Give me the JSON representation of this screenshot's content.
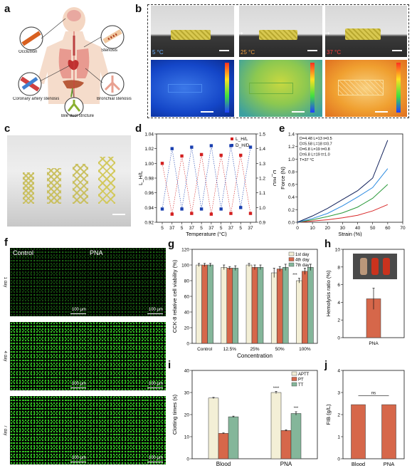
{
  "panels": {
    "a": {
      "letter": "a",
      "labels": [
        "Occlusion",
        "Stenosis",
        "Coronary artery stenosis",
        "Bronchial stenosis",
        "Bile duct stricture"
      ]
    },
    "b": {
      "letter": "b",
      "temps": [
        "5 °C",
        "25 °C",
        "37 °C"
      ],
      "colors": {
        "cold": "#1446c8",
        "mid": "#8cc850",
        "hot": "#f0a030"
      }
    },
    "c": {
      "letter": "c"
    },
    "d": {
      "letter": "d"
    },
    "e": {
      "letter": "e"
    },
    "f": {
      "letter": "f",
      "columns": [
        "Control",
        "PNA"
      ],
      "rows": [
        "1 day",
        "4 day",
        "7 day"
      ],
      "scale": "100 μm"
    },
    "g": {
      "letter": "g"
    },
    "h": {
      "letter": "h"
    },
    "i": {
      "letter": "i"
    },
    "j": {
      "letter": "j"
    }
  },
  "chart_data": [
    {
      "id": "d",
      "type": "scatter",
      "xlabel": "Temperature (°C)",
      "ylabel_left": "L_H/L",
      "ylabel_right": "D_H/D",
      "x_ticks": [
        "5",
        "37",
        "5",
        "37",
        "5",
        "37",
        "5",
        "37",
        "5",
        "37"
      ],
      "ylim_left": [
        0.92,
        1.04
      ],
      "yticks_left": [
        0.92,
        0.94,
        0.96,
        0.98,
        1.0,
        1.02,
        1.04
      ],
      "ylim_right": [
        0.9,
        1.5
      ],
      "yticks_right": [
        0.9,
        1.0,
        1.1,
        1.2,
        1.3,
        1.4,
        1.5
      ],
      "series": [
        {
          "name": "L_H/L",
          "color": "#d32020",
          "axis": "left",
          "values": [
            1.0,
            0.931,
            1.01,
            0.932,
            1.012,
            0.931,
            1.011,
            0.932,
            1.011,
            0.932
          ]
        },
        {
          "name": "D_H/D",
          "color": "#1a40b0",
          "axis": "right",
          "values": [
            0.99,
            1.4,
            0.99,
            1.41,
            0.99,
            1.42,
            0.99,
            1.42,
            1.0,
            1.41
          ]
        }
      ],
      "legend_position": "top-right"
    },
    {
      "id": "e",
      "type": "line",
      "xlabel": "Strain (%)",
      "ylabel": "Force (N)",
      "xlim": [
        0,
        70
      ],
      "xticks": [
        0,
        10,
        20,
        30,
        40,
        50,
        60,
        70
      ],
      "ylim": [
        0,
        1.4
      ],
      "yticks": [
        0.0,
        0.2,
        0.4,
        0.6,
        0.8,
        1.0,
        1.2,
        1.4
      ],
      "legend": [
        "D=4.48 L=13 t=0.5",
        "D=5.58 L=18 t=0.7",
        "D=6.8 L=19 t=0.8",
        "D=6.8 L=19 t=1.0",
        "T=37 °C"
      ],
      "series": [
        {
          "name": "D=4.48 L=13 t=0.5",
          "color": "#d82828",
          "x": [
            0,
            10,
            20,
            30,
            40,
            50,
            60
          ],
          "values": [
            0,
            0.02,
            0.04,
            0.07,
            0.11,
            0.18,
            0.28
          ]
        },
        {
          "name": "D=5.58 L=18 t=0.7",
          "color": "#2a9a3a",
          "x": [
            0,
            10,
            20,
            30,
            40,
            50,
            60
          ],
          "values": [
            0,
            0.04,
            0.09,
            0.15,
            0.24,
            0.38,
            0.6
          ]
        },
        {
          "name": "D=6.8 L=19 t=0.8",
          "color": "#2a8ae0",
          "x": [
            0,
            10,
            20,
            30,
            40,
            50,
            60
          ],
          "values": [
            0,
            0.06,
            0.14,
            0.26,
            0.4,
            0.55,
            0.85
          ]
        },
        {
          "name": "D=6.8 L=19 t=1.0",
          "color": "#10205a",
          "x": [
            0,
            10,
            20,
            30,
            40,
            50,
            60
          ],
          "values": [
            0,
            0.1,
            0.22,
            0.36,
            0.5,
            0.7,
            1.3
          ]
        }
      ]
    },
    {
      "id": "g",
      "type": "bar",
      "xlabel": "Concentration",
      "ylabel": "CCK-8 relative cell viability (%)",
      "ylim": [
        0,
        120
      ],
      "yticks": [
        0,
        20,
        40,
        60,
        80,
        100,
        120
      ],
      "categories": [
        "Control",
        "12.5%",
        "25%",
        "50%",
        "100%"
      ],
      "series": [
        {
          "name": "1st day",
          "color": "#f3efd6",
          "values": [
            100,
            97,
            100,
            90,
            80
          ],
          "errors": [
            2,
            3,
            2,
            6,
            3
          ]
        },
        {
          "name": "4th day",
          "color": "#d6674a",
          "values": [
            100,
            96,
            97,
            95,
            92
          ],
          "errors": [
            2,
            2,
            3,
            3,
            4
          ]
        },
        {
          "name": "7th day",
          "color": "#84b69a",
          "values": [
            100,
            96,
            97,
            97,
            97
          ],
          "errors": [
            2,
            3,
            3,
            4,
            4
          ]
        }
      ],
      "annotations": [
        "***"
      ]
    },
    {
      "id": "h",
      "type": "bar",
      "ylabel": "Hemolysis ratio (%)",
      "ylim": [
        0,
        10
      ],
      "yticks": [
        0,
        2,
        4,
        6,
        8,
        10
      ],
      "categories": [
        "PNA"
      ],
      "values": [
        4.4
      ],
      "errors": [
        1.2
      ],
      "colors": [
        "#d6674a"
      ]
    },
    {
      "id": "i",
      "type": "bar",
      "xlabel": "",
      "ylabel": "Clotting times (s)",
      "ylim": [
        0,
        40
      ],
      "yticks": [
        0,
        10,
        20,
        30,
        40
      ],
      "categories": [
        "Blood",
        "PNA"
      ],
      "series": [
        {
          "name": "APTT",
          "color": "#f3efd6",
          "values": [
            27.5,
            30.0
          ],
          "errors": [
            0.3,
            0.5
          ]
        },
        {
          "name": "PT",
          "color": "#d6674a",
          "values": [
            11.5,
            12.8
          ],
          "errors": [
            0.2,
            0.3
          ]
        },
        {
          "name": "TT",
          "color": "#84b69a",
          "values": [
            19.0,
            20.5
          ],
          "errors": [
            0.3,
            0.8
          ]
        }
      ],
      "annotations": [
        "****",
        "***"
      ]
    },
    {
      "id": "j",
      "type": "bar",
      "ylabel": "FIB (g/L)",
      "ylim": [
        0,
        4
      ],
      "yticks": [
        0,
        1,
        2,
        3,
        4
      ],
      "categories": [
        "Blood",
        "PNA"
      ],
      "values": [
        2.45,
        2.45
      ],
      "colors": [
        "#d6674a",
        "#d6674a"
      ],
      "annotation": "ns"
    }
  ]
}
